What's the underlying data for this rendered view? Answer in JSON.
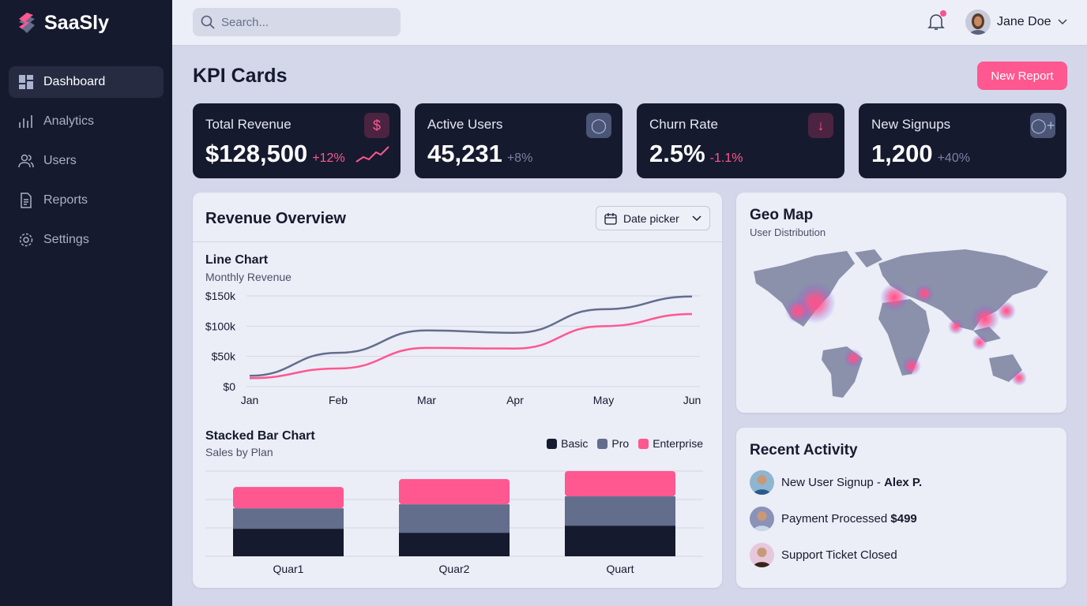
{
  "app": {
    "name": "SaaSly"
  },
  "sidebar": {
    "items": [
      {
        "label": "Dashboard",
        "icon": "dashboard-icon",
        "active": true
      },
      {
        "label": "Analytics",
        "icon": "analytics-icon"
      },
      {
        "label": "Users",
        "icon": "users-icon"
      },
      {
        "label": "Reports",
        "icon": "reports-icon"
      },
      {
        "label": "Settings",
        "icon": "settings-icon"
      }
    ]
  },
  "header": {
    "search_placeholder": "Search...",
    "user_name": "Jane Doe",
    "has_notification": true
  },
  "page": {
    "title": "KPI Cards",
    "new_report_label": "New Report"
  },
  "colors": {
    "accent": "#ff5790",
    "dark": "#161a2e",
    "slate": "#636d8c",
    "bg": "#d4d7ea"
  },
  "kpis": [
    {
      "label": "Total Revenue",
      "value": "$128,500",
      "delta": "+12%",
      "icon": "dollar-icon",
      "tone": "pink"
    },
    {
      "label": "Active Users",
      "value": "45,231",
      "delta": "+8%",
      "icon": "user-icon",
      "tone": "slate"
    },
    {
      "label": "Churn Rate",
      "value": "2.5%",
      "delta": "-1.1%",
      "icon": "arrow-down-icon",
      "tone": "pink"
    },
    {
      "label": "New Signups",
      "value": "1,200",
      "delta": "+40%",
      "icon": "user-plus-icon",
      "tone": "slate"
    }
  ],
  "revenue": {
    "title": "Revenue Overview",
    "date_picker": "Date picker"
  },
  "geo": {
    "title": "Geo Map",
    "subtitle": "User Distribution"
  },
  "activity": {
    "title": "Recent Activity",
    "items": [
      {
        "text": "New User Signup - ",
        "bold": "Alex P."
      },
      {
        "text": "Payment Processed ",
        "bold": "$499"
      },
      {
        "text": "Support Ticket Closed",
        "bold": ""
      }
    ]
  },
  "chart_data": [
    {
      "type": "line",
      "title": "Line Chart",
      "subtitle": "Monthly Revenue",
      "categories": [
        "Jan",
        "Feb",
        "Mar",
        "Apr",
        "May",
        "Jun"
      ],
      "yticks": [
        "$0",
        "$50k",
        "$100k",
        "$150k"
      ],
      "ylim": [
        0,
        150000
      ],
      "grid": true,
      "series": [
        {
          "color": "#636d8c",
          "values": [
            18000,
            56000,
            93000,
            89000,
            128000,
            149000
          ]
        },
        {
          "color": "#ff5790",
          "values": [
            14000,
            30000,
            64000,
            63000,
            100000,
            120000
          ]
        }
      ]
    },
    {
      "type": "bar",
      "stacked": true,
      "title": "Stacked Bar Chart",
      "subtitle": "Sales by Plan",
      "categories": [
        "Quar1",
        "Quar2",
        "Quart"
      ],
      "legend": "top-right",
      "grid": true,
      "ylim": [
        0,
        3
      ],
      "series": [
        {
          "name": "Basic",
          "color": "#161a2e",
          "values": [
            0.97,
            0.83,
            1.08
          ]
        },
        {
          "name": "Pro",
          "color": "#636d8c",
          "values": [
            0.72,
            1.0,
            1.03
          ]
        },
        {
          "name": "Enterprise",
          "color": "#ff5790",
          "values": [
            0.75,
            0.89,
            0.89
          ]
        }
      ]
    }
  ]
}
